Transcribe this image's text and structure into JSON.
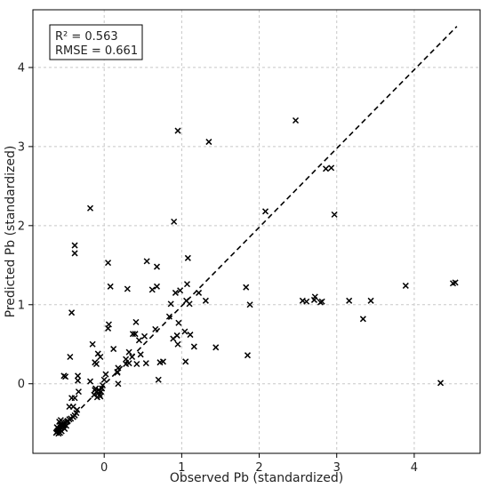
{
  "chart_data": {
    "type": "scatter",
    "title": "",
    "xlabel": "Observed Pb (standardized)",
    "ylabel": "Predicted Pb (standardized)",
    "xlim": [
      -0.92,
      4.85
    ],
    "ylim": [
      -0.88,
      4.73
    ],
    "xticks": [
      0,
      1,
      2,
      3,
      4
    ],
    "yticks": [
      0,
      1,
      2,
      3,
      4
    ],
    "xtick_labels": [
      "0",
      "1",
      "2",
      "3",
      "4"
    ],
    "ytick_labels": [
      "0",
      "1",
      "2",
      "3",
      "4"
    ],
    "grid": true,
    "marker": "x",
    "marker_color": "#000000",
    "annotation": {
      "r2": "R² = 0.563",
      "rmse": "RMSE = 0.661"
    },
    "reference_line": {
      "style": "dashed",
      "color": "#000000",
      "from": [
        -0.62,
        -0.63
      ],
      "to": [
        4.55,
        4.52
      ]
    },
    "points": [
      [
        -0.18,
        2.22
      ],
      [
        -0.38,
        1.75
      ],
      [
        -0.38,
        1.65
      ],
      [
        -0.42,
        0.9
      ],
      [
        -0.44,
        0.34
      ],
      [
        -0.52,
        0.1
      ],
      [
        -0.5,
        0.09
      ],
      [
        -0.34,
        0.1
      ],
      [
        -0.34,
        0.04
      ],
      [
        -0.33,
        -0.1
      ],
      [
        -0.38,
        -0.18
      ],
      [
        -0.42,
        -0.18
      ],
      [
        -0.4,
        -0.29
      ],
      [
        -0.45,
        -0.29
      ],
      [
        -0.35,
        -0.33
      ],
      [
        -0.36,
        -0.37
      ],
      [
        -0.38,
        -0.4
      ],
      [
        -0.4,
        -0.42
      ],
      [
        -0.43,
        -0.44
      ],
      [
        -0.45,
        -0.45
      ],
      [
        -0.47,
        -0.47
      ],
      [
        -0.48,
        -0.48
      ],
      [
        -0.5,
        -0.49
      ],
      [
        -0.52,
        -0.5
      ],
      [
        -0.54,
        -0.51
      ],
      [
        -0.55,
        -0.53
      ],
      [
        -0.56,
        -0.55
      ],
      [
        -0.57,
        -0.57
      ],
      [
        -0.58,
        -0.58
      ],
      [
        -0.59,
        -0.59
      ],
      [
        -0.6,
        -0.6
      ],
      [
        -0.61,
        -0.61
      ],
      [
        -0.62,
        -0.62
      ],
      [
        -0.6,
        -0.56
      ],
      [
        -0.57,
        -0.52
      ],
      [
        -0.55,
        -0.6
      ],
      [
        -0.53,
        -0.55
      ],
      [
        -0.51,
        -0.57
      ],
      [
        -0.49,
        -0.53
      ],
      [
        -0.57,
        -0.62
      ],
      [
        -0.59,
        -0.63
      ],
      [
        -0.58,
        -0.48
      ],
      [
        -0.56,
        -0.46
      ],
      [
        -0.61,
        -0.55
      ],
      [
        -0.18,
        0.03
      ],
      [
        -0.15,
        0.5
      ],
      [
        -0.12,
        0.27
      ],
      [
        -0.1,
        0.25
      ],
      [
        -0.08,
        0.38
      ],
      [
        -0.05,
        0.34
      ],
      [
        -0.12,
        -0.08
      ],
      [
        -0.1,
        -0.1
      ],
      [
        -0.08,
        -0.12
      ],
      [
        -0.06,
        -0.14
      ],
      [
        -0.04,
        -0.1
      ],
      [
        -0.03,
        -0.06
      ],
      [
        -0.02,
        -0.02
      ],
      [
        -0.05,
        -0.16
      ],
      [
        -0.09,
        -0.17
      ],
      [
        -0.13,
        -0.14
      ],
      [
        -0.11,
        -0.06
      ],
      [
        -0.07,
        -0.08
      ],
      [
        0.0,
        0.05
      ],
      [
        0.02,
        0.12
      ],
      [
        0.05,
        1.53
      ],
      [
        0.08,
        1.23
      ],
      [
        0.06,
        0.75
      ],
      [
        0.05,
        0.7
      ],
      [
        0.12,
        0.44
      ],
      [
        0.18,
        0.2
      ],
      [
        0.17,
        0.15
      ],
      [
        0.17,
        0.14
      ],
      [
        0.18,
        0.0
      ],
      [
        0.28,
        0.25
      ],
      [
        0.28,
        0.31
      ],
      [
        0.32,
        0.26
      ],
      [
        0.32,
        0.4
      ],
      [
        0.36,
        0.34
      ],
      [
        0.3,
        1.2
      ],
      [
        0.37,
        0.63
      ],
      [
        0.4,
        0.63
      ],
      [
        0.41,
        0.78
      ],
      [
        0.42,
        0.25
      ],
      [
        0.45,
        0.55
      ],
      [
        0.47,
        0.37
      ],
      [
        0.52,
        0.6
      ],
      [
        0.54,
        0.26
      ],
      [
        0.55,
        1.55
      ],
      [
        0.62,
        1.19
      ],
      [
        0.66,
        0.69
      ],
      [
        0.68,
        1.23
      ],
      [
        0.68,
        1.48
      ],
      [
        0.7,
        0.05
      ],
      [
        0.72,
        0.27
      ],
      [
        0.76,
        0.28
      ],
      [
        0.84,
        0.85
      ],
      [
        0.86,
        1.01
      ],
      [
        0.89,
        0.57
      ],
      [
        0.9,
        2.05
      ],
      [
        0.92,
        1.15
      ],
      [
        0.94,
        0.61
      ],
      [
        0.96,
        0.77
      ],
      [
        0.95,
        0.5
      ],
      [
        0.95,
        3.2
      ],
      [
        0.98,
        1.18
      ],
      [
        1.04,
        0.66
      ],
      [
        1.05,
        0.28
      ],
      [
        1.06,
        1.05
      ],
      [
        1.07,
        1.26
      ],
      [
        1.08,
        1.59
      ],
      [
        1.1,
        1.01
      ],
      [
        1.11,
        0.62
      ],
      [
        1.16,
        0.47
      ],
      [
        1.22,
        1.15
      ],
      [
        1.31,
        1.05
      ],
      [
        1.35,
        3.06
      ],
      [
        1.44,
        0.46
      ],
      [
        1.83,
        1.22
      ],
      [
        1.85,
        0.36
      ],
      [
        1.88,
        1.0
      ],
      [
        2.08,
        2.18
      ],
      [
        2.47,
        3.33
      ],
      [
        2.56,
        1.05
      ],
      [
        2.61,
        1.04
      ],
      [
        2.71,
        1.06
      ],
      [
        2.72,
        1.1
      ],
      [
        2.79,
        1.03
      ],
      [
        2.81,
        1.04
      ],
      [
        2.86,
        2.72
      ],
      [
        2.93,
        2.73
      ],
      [
        2.97,
        2.14
      ],
      [
        3.16,
        1.05
      ],
      [
        3.34,
        0.82
      ],
      [
        3.44,
        1.05
      ],
      [
        3.89,
        1.24
      ],
      [
        4.34,
        0.01
      ],
      [
        4.5,
        1.27
      ],
      [
        4.53,
        1.28
      ]
    ]
  }
}
